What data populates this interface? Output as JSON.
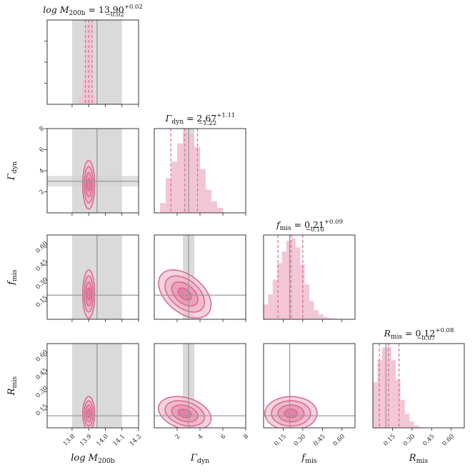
{
  "chart_data": {
    "type": "corner",
    "colors": {
      "accent": "#d9668f",
      "fill_light": "#f2c3d3",
      "fill_mid": "#e896b3",
      "fill_dark": "#dd7aa0",
      "truth_line": "#999999",
      "truth_band": "#d3d3d3",
      "frame": "#222222"
    },
    "parameters": [
      {
        "key": "logM",
        "label_main": "log M",
        "label_sub": "200b",
        "title": {
          "main": "log M",
          "sub": "200b",
          "value": "= 13.90",
          "upper": "+0.02",
          "lower": "−0.02"
        },
        "range": [
          13.65,
          14.2
        ],
        "ticks": [
          13.8,
          13.9,
          14.0,
          14.1,
          14.2
        ],
        "tick_labels": [
          "13.8",
          "13.9",
          "14.0",
          "14.1",
          "14.2"
        ],
        "median": 13.9,
        "q16": 13.88,
        "q84": 13.92,
        "truth": 13.95,
        "truth_band": [
          13.8,
          14.1
        ],
        "hist": {
          "edges": [
            13.82,
            13.84,
            13.86,
            13.88,
            13.9,
            13.92,
            13.94
          ],
          "counts": [
            0,
            0.09,
            0.28,
            0.97,
            0.98,
            0.1
          ]
        }
      },
      {
        "key": "Gamma",
        "label_main": "Γ",
        "label_sub": "dyn",
        "title": {
          "main": "Γ",
          "sub": "dyn",
          "value": "= 2.67",
          "upper": "+1.11",
          "lower": "−1.22"
        },
        "range": [
          0,
          8
        ],
        "ticks": [
          2,
          4,
          6,
          8
        ],
        "tick_labels": [
          "2",
          "4",
          "6",
          "8"
        ],
        "median": 2.67,
        "q16": 1.45,
        "q84": 3.78,
        "truth": 3.0,
        "truth_band": [
          2.5,
          3.5
        ],
        "hist": {
          "edges": [
            0.5,
            1.0,
            1.5,
            2.0,
            2.5,
            3.0,
            3.5,
            4.0,
            4.5,
            5.0,
            5.5,
            6.0
          ],
          "counts": [
            0.12,
            0.42,
            0.62,
            0.84,
            0.97,
            0.95,
            0.8,
            0.53,
            0.28,
            0.14,
            0.06
          ]
        }
      },
      {
        "key": "fmis",
        "label_main": "f",
        "label_sub": "mis",
        "title": {
          "main": "f",
          "sub": "mis",
          "value": "= 0.21",
          "upper": "+0.09",
          "lower": "−0.10"
        },
        "range": [
          0,
          0.7
        ],
        "ticks": [
          0.15,
          0.3,
          0.45,
          0.6
        ],
        "tick_labels": [
          "0.15",
          "0.30",
          "0.45",
          "0.60"
        ],
        "median": 0.21,
        "q16": 0.11,
        "q84": 0.3,
        "truth": 0.2,
        "hist": {
          "edges": [
            0.0,
            0.035,
            0.07,
            0.105,
            0.14,
            0.175,
            0.21,
            0.245,
            0.28,
            0.315,
            0.35,
            0.385,
            0.42,
            0.455,
            0.49,
            0.525,
            0.56
          ],
          "counts": [
            0.18,
            0.3,
            0.48,
            0.68,
            0.82,
            0.95,
            0.98,
            0.87,
            0.66,
            0.42,
            0.22,
            0.11,
            0.06,
            0.03,
            0.015,
            0.01
          ]
        }
      },
      {
        "key": "Rmis",
        "label_main": "R",
        "label_sub": "mis",
        "title": {
          "main": "R",
          "sub": "mis",
          "value": "= 0.12",
          "upper": "+0.08",
          "lower": "−0.07"
        },
        "range": [
          0,
          0.7
        ],
        "ticks": [
          0.15,
          0.3,
          0.45,
          0.6
        ],
        "tick_labels": [
          "0.15",
          "0.30",
          "0.45",
          "0.60"
        ],
        "median": 0.12,
        "q16": 0.05,
        "q84": 0.2,
        "truth": 0.1,
        "hist": {
          "edges": [
            0.0,
            0.035,
            0.07,
            0.105,
            0.14,
            0.175,
            0.21,
            0.245,
            0.28,
            0.315,
            0.35,
            0.385
          ],
          "counts": [
            0.55,
            0.82,
            0.97,
            0.98,
            0.82,
            0.58,
            0.34,
            0.17,
            0.08,
            0.03,
            0.01
          ]
        }
      }
    ],
    "contours_2d": [
      {
        "row": 1,
        "col": 0,
        "mean": [
          13.9,
          2.67
        ],
        "sigma": [
          0.018,
          1.15
        ],
        "rho": 0
      },
      {
        "row": 2,
        "col": 0,
        "mean": [
          13.9,
          0.21
        ],
        "sigma": [
          0.018,
          0.1
        ],
        "rho": 0
      },
      {
        "row": 2,
        "col": 1,
        "mean": [
          2.67,
          0.21
        ],
        "sigma": [
          1.15,
          0.1
        ],
        "rho": -0.45
      },
      {
        "row": 3,
        "col": 0,
        "mean": [
          13.9,
          0.12
        ],
        "sigma": [
          0.018,
          0.07
        ],
        "rho": 0
      },
      {
        "row": 3,
        "col": 1,
        "mean": [
          2.67,
          0.12
        ],
        "sigma": [
          1.15,
          0.07
        ],
        "rho": -0.3
      },
      {
        "row": 3,
        "col": 2,
        "mean": [
          0.21,
          0.12
        ],
        "sigma": [
          0.1,
          0.07
        ],
        "rho": 0
      }
    ],
    "contour_levels": [
      0.5,
      1.0,
      1.5,
      2.0
    ],
    "hist_ylim_top": 1.02
  }
}
